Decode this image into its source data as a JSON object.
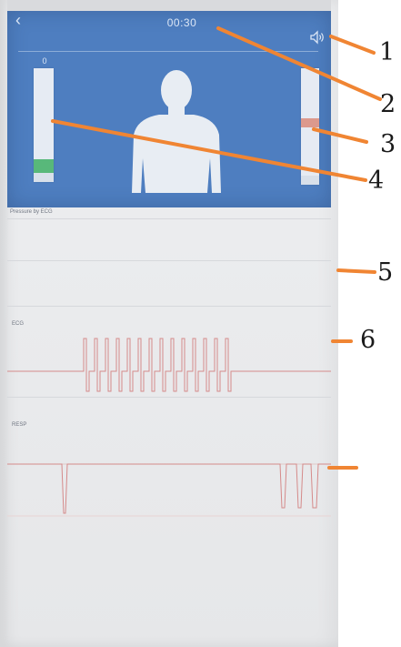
{
  "header": {
    "back_icon": "back-arrow-icon",
    "timer": "00:30",
    "sound_icon": "speaker-icon"
  },
  "level_meters": {
    "left": {
      "label": "0",
      "caption": "",
      "fill_fraction": 0.12,
      "fill_color": "#58b87a"
    },
    "right": {
      "caption": "",
      "marker_fraction": 0.57,
      "marker_color": "#d98473"
    }
  },
  "body_image": "human-torso-silhouette",
  "sections": [
    {
      "label": "Pressure by ECG"
    },
    {
      "label": "ECG"
    },
    {
      "label": "RESP"
    }
  ],
  "callouts": [
    "1",
    "2",
    "3",
    "4",
    "5",
    "6"
  ],
  "colors": {
    "header_bg": "#4e7ec0",
    "waveform": "#d58a8a",
    "callout_line": "#f08533"
  }
}
